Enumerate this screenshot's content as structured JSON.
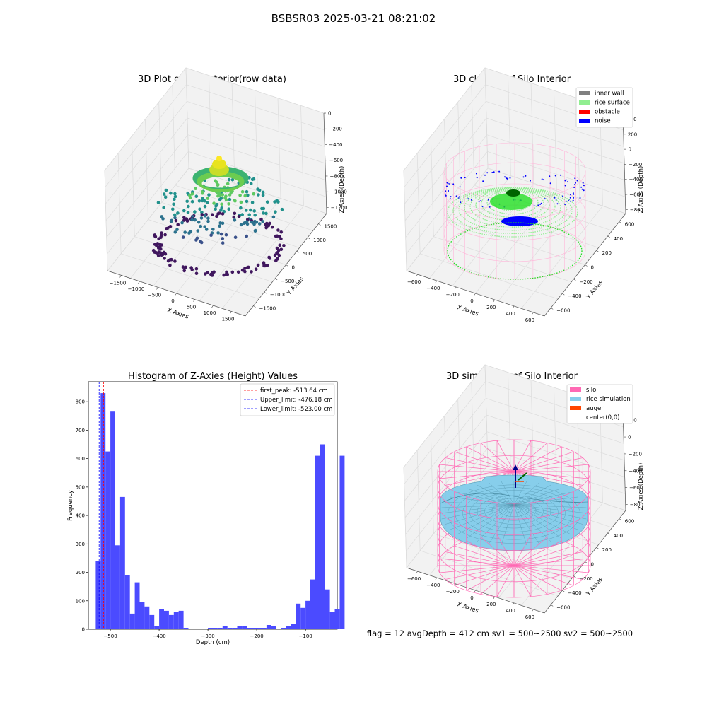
{
  "figure": {
    "title": "BSBSR03 2025-03-21 08:21:02",
    "footer": "flag = 12   avgDepth = 412 cm  sv1 = 500~2500  sv2 = 500~2500"
  },
  "colors": {
    "inner_wall": "#808080",
    "rice_surface": "#90ee90",
    "obstacle": "#ff0000",
    "noise": "#0000ff",
    "silo": "#ff69b4",
    "rice_simulation": "#87ceeb",
    "auger": "#ff4500",
    "histogram_bar": "#4b4bff",
    "first_peak_line": "#ff0000",
    "limit_line": "#0000ff"
  },
  "chart_data": [
    {
      "type": "scatter",
      "title": "3D Plot of Silo Interior(row data)",
      "xlabel": "X Axies",
      "ylabel": "Y Axies",
      "zlabel": "Z Axies (Depth)",
      "x_ticks": [
        "−1500",
        "−1000",
        "−500",
        "0",
        "500",
        "1000",
        "1500"
      ],
      "y_ticks": [
        "1500",
        "1000",
        "500",
        "0",
        "−500",
        "−1000",
        "−1500"
      ],
      "z_ticks": [
        "0",
        "−200",
        "−400",
        "−600",
        "−800",
        "−1000",
        "−1200"
      ],
      "xlim": [
        -1700,
        1700
      ],
      "ylim": [
        -1700,
        1700
      ],
      "zlim": [
        -1300,
        0
      ]
    },
    {
      "type": "scatter",
      "title": "3D classify of Silo Interior",
      "xlabel": "X Axies",
      "ylabel": "Y Axies",
      "zlabel": "Z Axies (Depth)",
      "x_ticks": [
        "−600",
        "−400",
        "−200",
        "0",
        "200",
        "400",
        "600"
      ],
      "y_ticks": [
        "600",
        "400",
        "200",
        "0",
        "−200",
        "−400",
        "−600"
      ],
      "z_ticks": [
        "400",
        "200",
        "0",
        "−200",
        "−400",
        "−600",
        "−800"
      ],
      "xlim": [
        -700,
        700
      ],
      "ylim": [
        -700,
        700
      ],
      "zlim": [
        -900,
        450
      ],
      "legend": [
        "inner wall",
        "rice surface",
        "obstacle",
        "noise"
      ],
      "legend_position": "top-right"
    },
    {
      "type": "bar",
      "title": "Histogram of Z-Axies (Height) Values",
      "xlabel": "Depth (cm)",
      "ylabel": "Frequency",
      "x_ticks": [
        -500,
        -400,
        -300,
        -200,
        -100
      ],
      "y_ticks": [
        0,
        100,
        200,
        300,
        400,
        500,
        600,
        700,
        800
      ],
      "xlim": [
        -545,
        -35
      ],
      "ylim": [
        0,
        870
      ],
      "bin_start": -530,
      "bin_width": 10,
      "values": [
        240,
        830,
        625,
        765,
        295,
        465,
        190,
        55,
        165,
        95,
        80,
        50,
        10,
        70,
        65,
        50,
        60,
        65,
        5,
        0,
        0,
        0,
        0,
        5,
        5,
        5,
        10,
        5,
        5,
        10,
        10,
        5,
        5,
        5,
        5,
        15,
        10,
        0,
        5,
        10,
        20,
        90,
        75,
        100,
        175,
        610,
        650,
        140,
        60,
        70,
        610
      ],
      "lines": [
        {
          "label": "first_peak: -513.64 cm",
          "x": -513.64,
          "color": "#ff0000"
        },
        {
          "label": "Upper_limit: -476.18 cm",
          "x": -476.18,
          "color": "#0000ff"
        },
        {
          "label": "Lower_limit: -523.00 cm",
          "x": -523.0,
          "color": "#0000ff"
        }
      ],
      "legend_position": "top-right"
    },
    {
      "type": "area",
      "title": "3D simulation of Silo Interior",
      "xlabel": "X Axies",
      "ylabel": "Y Axies",
      "zlabel": "Z Axies (Depth)",
      "x_ticks": [
        "−600",
        "−400",
        "−200",
        "0",
        "200",
        "400",
        "600"
      ],
      "y_ticks": [
        "600",
        "400",
        "200",
        "0",
        "−200",
        "−400",
        "−600"
      ],
      "z_ticks": [
        "200",
        "0",
        "−200",
        "−400",
        "−600",
        "−800"
      ],
      "xlim": [
        -700,
        700
      ],
      "ylim": [
        -700,
        700
      ],
      "zlim": [
        -900,
        350
      ],
      "legend": [
        "silo",
        "rice simulation",
        "auger",
        "center(0,0)"
      ],
      "legend_position": "top-right"
    }
  ]
}
